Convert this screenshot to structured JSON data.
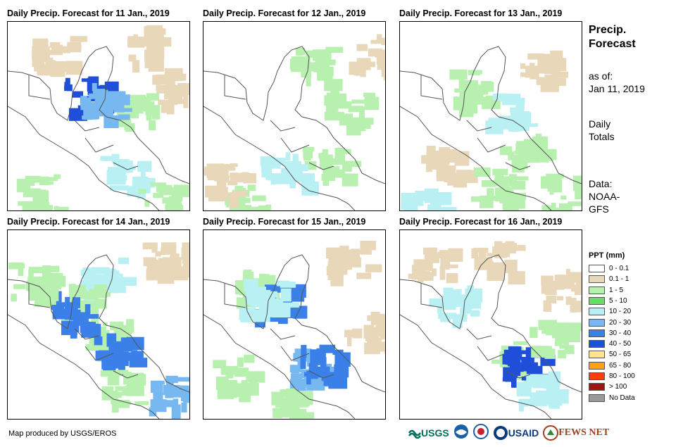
{
  "panels": [
    {
      "title": "Daily Precip. Forecast for 11 Jan., 2019"
    },
    {
      "title": "Daily Precip. Forecast for 12 Jan., 2019"
    },
    {
      "title": "Daily Precip. Forecast for 13 Jan., 2019"
    },
    {
      "title": "Daily Precip. Forecast for 14 Jan., 2019"
    },
    {
      "title": "Daily Precip. Forecast for 15 Jan., 2019"
    },
    {
      "title": "Daily Precip. Forecast for 16 Jan., 2019"
    }
  ],
  "side": {
    "title_line1": "Precip.",
    "title_line2": "Forecast",
    "asof_line1": "as of:",
    "asof_line2": "Jan 11, 2019",
    "totals_line1": "Daily",
    "totals_line2": "Totals",
    "data_line1": "Data:",
    "data_line2": "NOAA-",
    "data_line3": "GFS"
  },
  "legend": {
    "title": "PPT (mm)",
    "items": [
      {
        "label": "0 - 0.1",
        "color": "#ffffff"
      },
      {
        "label": "0.1 - 1",
        "color": "#e8d7b8"
      },
      {
        "label": "1 - 5",
        "color": "#b8f0b0"
      },
      {
        "label": "5 - 10",
        "color": "#66dd66"
      },
      {
        "label": "10 - 20",
        "color": "#b8f0f4"
      },
      {
        "label": "20 - 30",
        "color": "#77b8f0"
      },
      {
        "label": "30 - 40",
        "color": "#3a80e8"
      },
      {
        "label": "40 - 50",
        "color": "#1f4fd8"
      },
      {
        "label": "50 - 65",
        "color": "#ffe68a"
      },
      {
        "label": "65 - 80",
        "color": "#ff9f1a"
      },
      {
        "label": "80 - 100",
        "color": "#ff3c14"
      },
      {
        "label": "> 100",
        "color": "#a01414"
      },
      {
        "label": "No Data",
        "color": "#999999"
      }
    ]
  },
  "credit": "Map produced by USGS/EROS",
  "logos": {
    "usgs": "USGS",
    "usaid": "USAID",
    "fewsnet": "FEWS NET"
  }
}
